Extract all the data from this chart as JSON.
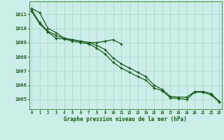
{
  "x": [
    0,
    1,
    2,
    3,
    4,
    5,
    6,
    7,
    8,
    9,
    10,
    11,
    12,
    13,
    14,
    15,
    16,
    17,
    18,
    19,
    20,
    21,
    22,
    23
  ],
  "line1": [
    1011.4,
    1011.1,
    1010.0,
    1009.7,
    1009.3,
    1009.2,
    1009.1,
    1009.0,
    1009.0,
    1009.1,
    1009.2,
    1008.9,
    null,
    null,
    null,
    null,
    null,
    null,
    null,
    null,
    null,
    null,
    null,
    null
  ],
  "line2": [
    1011.3,
    1010.4,
    1009.8,
    1009.5,
    1009.3,
    1009.2,
    1009.1,
    1009.0,
    1008.8,
    1008.5,
    1007.9,
    1007.5,
    1007.2,
    1006.9,
    1006.6,
    1006.0,
    1005.7,
    1005.2,
    1005.15,
    1005.15,
    1005.55,
    1005.55,
    1005.4,
    1004.85
  ],
  "line3": [
    1011.2,
    1010.3,
    1009.75,
    1009.3,
    1009.25,
    1009.1,
    1009.0,
    1008.9,
    1008.6,
    1008.2,
    1007.6,
    1007.2,
    1006.9,
    1006.6,
    1006.35,
    1005.8,
    1005.6,
    1005.1,
    1005.05,
    1005.0,
    1005.5,
    1005.5,
    1005.3,
    1004.8
  ],
  "bg_color": "#cceee8",
  "line_color": "#1a5c1a",
  "grid_color": "#aad4cc",
  "xlabel": "Graphe pression niveau de la mer (hPa)",
  "ylabel_ticks": [
    1005,
    1006,
    1007,
    1008,
    1009,
    1010,
    1011
  ],
  "ylim": [
    1004.3,
    1011.9
  ],
  "xlim": [
    -0.3,
    23.3
  ]
}
